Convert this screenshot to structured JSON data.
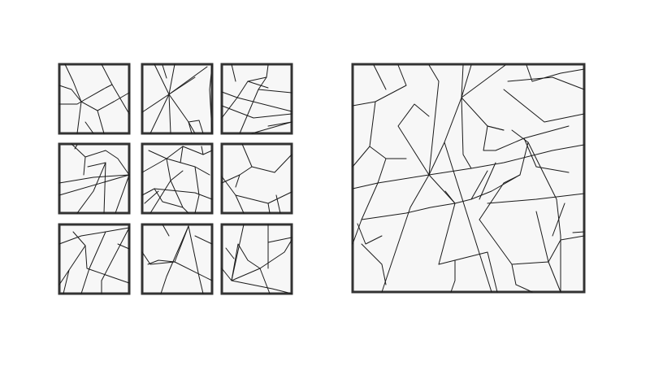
{
  "colors": {
    "background": "#ffffff",
    "tile_fill": "#f7f7f7",
    "frame_stroke": "#333333",
    "line_stroke": "#1a1a1a"
  },
  "small_grid": {
    "rows": 3,
    "columns": 3,
    "tiles": [
      {
        "id": "r1c1"
      },
      {
        "id": "r1c2"
      },
      {
        "id": "r1c3"
      },
      {
        "id": "r2c1"
      },
      {
        "id": "r2c2"
      },
      {
        "id": "r2c3"
      },
      {
        "id": "r3c1"
      },
      {
        "id": "r3c2"
      },
      {
        "id": "r3c3"
      }
    ]
  },
  "large_tile": {
    "id": "assembled"
  }
}
